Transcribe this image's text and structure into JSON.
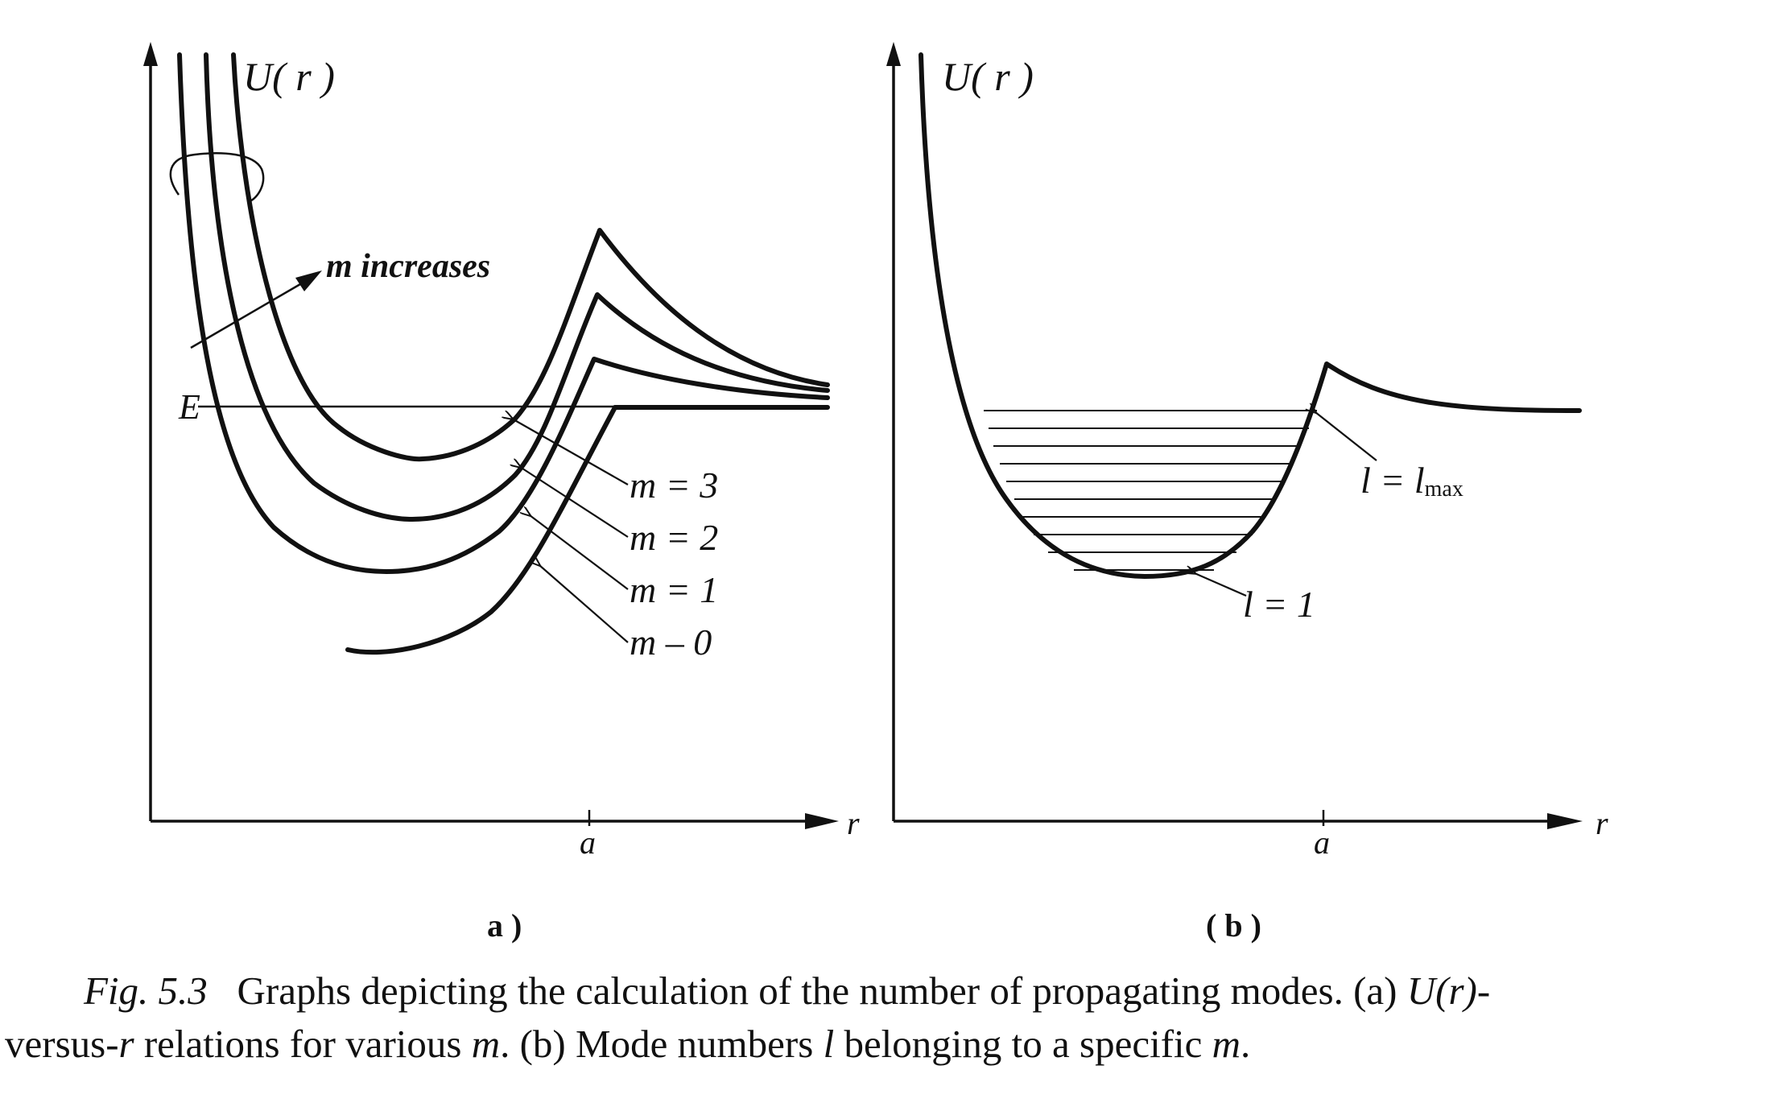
{
  "panel_a": {
    "y_label": "U( r )",
    "x_label": "r",
    "x_tick": "a",
    "energy_label": "E",
    "arrow_label": "m increases",
    "curve_labels": [
      "m = 3",
      "m = 2",
      "m = 1",
      "m – 0"
    ],
    "sublabel": "a )"
  },
  "panel_b": {
    "y_label": "U( r )",
    "x_label": "r",
    "x_tick": "a",
    "top_label": "l = l",
    "top_label_sub": "max",
    "bottom_label": "l = 1",
    "sublabel": "( b )"
  },
  "caption": {
    "fig_no": "Fig. 5.3",
    "text1": "Graphs depicting the calculation of the number of propagating modes. (a) ",
    "text1_var": "U(r)",
    "text1_end": "-",
    "text2_start": "versus-",
    "text2_var_r": "r",
    "text2_mid": " relations for various ",
    "text2_var_m": "m",
    "text2_mid2": ". (b) Mode numbers ",
    "text2_var_l": "l",
    "text2_mid3": " belonging to a specific ",
    "text2_var_m2": "m",
    "text2_end": "."
  }
}
